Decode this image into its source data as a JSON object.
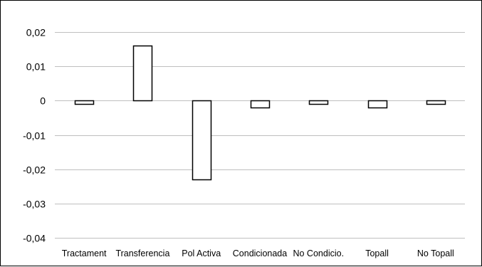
{
  "chart_data": {
    "type": "bar",
    "title": "",
    "xlabel": "",
    "ylabel": "",
    "categories": [
      "Tractament",
      "Transferencia",
      "Pol Activa",
      "Condicionada",
      "No Condicio.",
      "Topall",
      "No Topall"
    ],
    "values": [
      -0.001,
      0.016,
      -0.023,
      -0.002,
      -0.001,
      -0.002,
      -0.001
    ],
    "ylim": [
      -0.04,
      0.02
    ],
    "yticks": [
      0.02,
      0.01,
      0,
      -0.01,
      -0.02,
      -0.03,
      -0.04
    ],
    "ytick_labels": [
      "0,02",
      "0,01",
      "0",
      "-0,01",
      "-0,02",
      "-0,03",
      "-0,04"
    ],
    "grid": true,
    "legend": "none",
    "colors": {
      "bar_fill": "#ffffff",
      "bar_stroke": "#000000",
      "grid": "#bfbfbf"
    }
  }
}
